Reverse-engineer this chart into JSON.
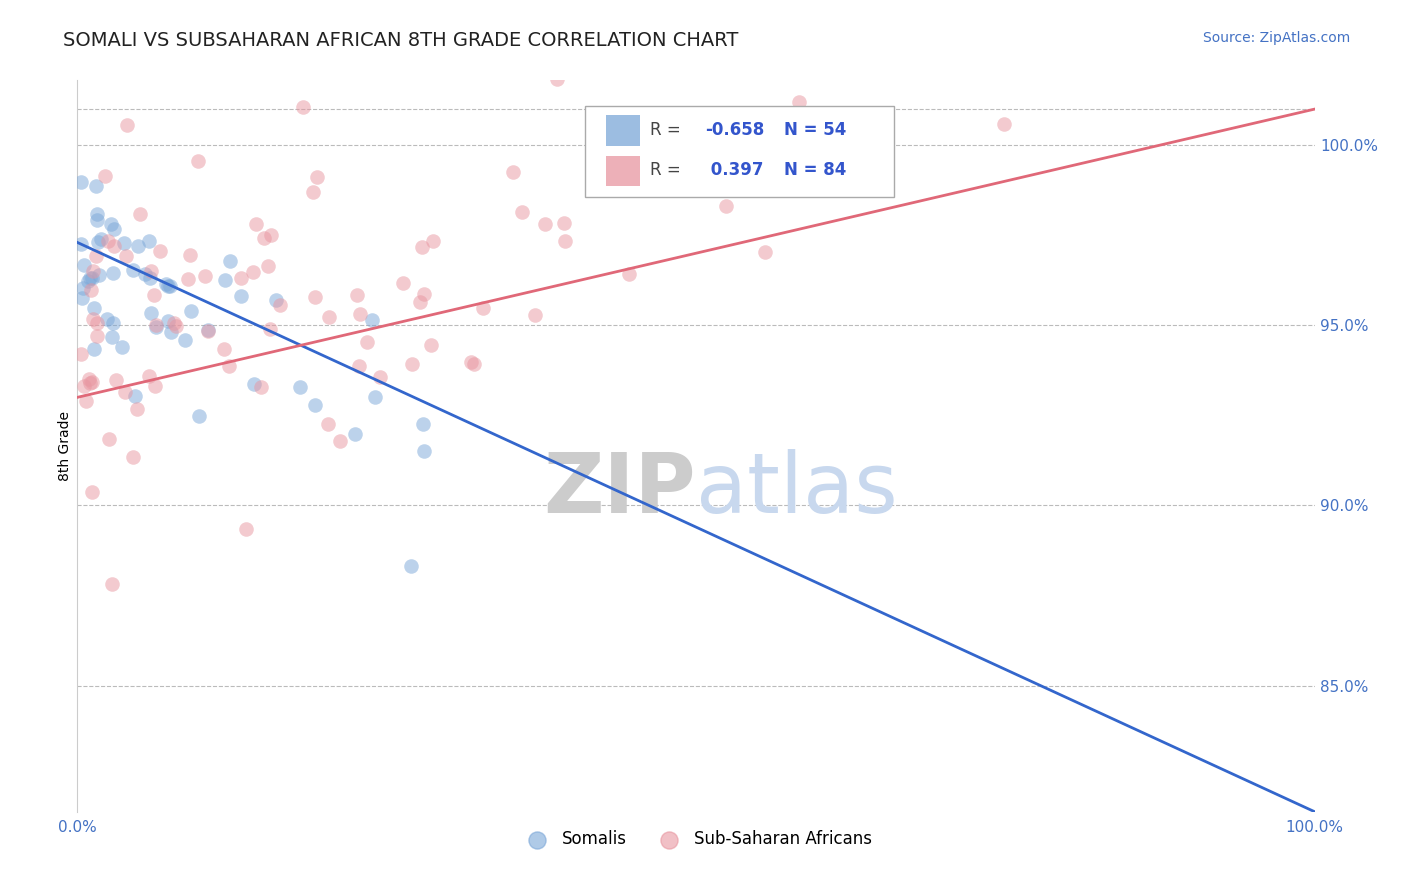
{
  "title": "SOMALI VS SUBSAHARAN AFRICAN 8TH GRADE CORRELATION CHART",
  "source": "Source: ZipAtlas.com",
  "ylabel": "8th Grade",
  "x_min": 0.0,
  "x_max": 100.0,
  "y_min": 81.5,
  "y_max": 101.8,
  "yticks": [
    85.0,
    90.0,
    95.0,
    100.0
  ],
  "ytick_labels": [
    "85.0%",
    "90.0%",
    "95.0%",
    "100.0%"
  ],
  "top_dashed_y": 101.0,
  "blue_R": -0.658,
  "blue_N": 54,
  "pink_R": 0.397,
  "pink_N": 84,
  "blue_color": "#7BA7D8",
  "pink_color": "#E896A0",
  "blue_line_color": "#3366CC",
  "pink_line_color": "#E06878",
  "watermark_zip": "ZIP",
  "watermark_atlas": "atlas",
  "legend_blue_label": "Somalis",
  "legend_pink_label": "Sub-Saharan Africans",
  "blue_line_x0": 0.0,
  "blue_line_y0": 97.3,
  "blue_line_x1": 100.0,
  "blue_line_y1": 81.5,
  "pink_line_x0": 0.0,
  "pink_line_y0": 93.0,
  "pink_line_x1": 100.0,
  "pink_line_y1": 101.0
}
